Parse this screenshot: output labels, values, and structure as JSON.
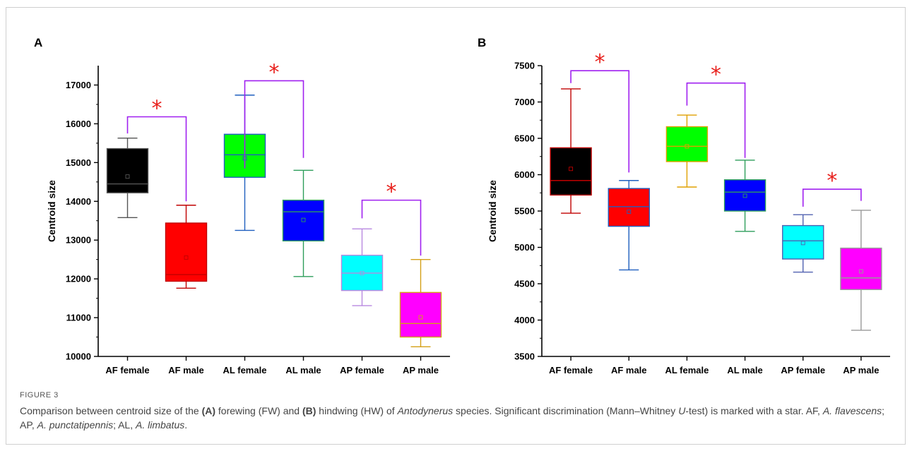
{
  "panels": [
    {
      "label": "A",
      "ylabel": "Centroid size",
      "ylim": [
        10000,
        17500
      ],
      "yticks": [
        10000,
        11000,
        12000,
        13000,
        14000,
        15000,
        16000,
        17000
      ]
    },
    {
      "label": "B",
      "ylabel": "Centroid size",
      "ylim": [
        3500,
        7500
      ],
      "yticks": [
        3500,
        4000,
        4500,
        5000,
        5500,
        6000,
        6500,
        7000,
        7500
      ]
    }
  ],
  "chart_data": [
    {
      "type": "box",
      "title": "",
      "xlabel": "",
      "ylabel": "Centroid size",
      "ylim": [
        10000,
        17500
      ],
      "grid": false,
      "categories": [
        "AF female",
        "AF male",
        "AL female",
        "AL male",
        "AP female",
        "AP male"
      ],
      "boxes": [
        {
          "category": "AF female",
          "min": 13580,
          "q1": 14220,
          "median": 14450,
          "mean": 14640,
          "q3": 15360,
          "max": 15630,
          "fill": "#000000",
          "line": "#555555"
        },
        {
          "category": "AF male",
          "min": 11760,
          "q1": 11940,
          "median": 12110,
          "mean": 12550,
          "q3": 13440,
          "max": 13900,
          "fill": "#ff0000",
          "line": "#c00000"
        },
        {
          "category": "AL female",
          "min": 13250,
          "q1": 14620,
          "median": 15200,
          "mean": 15110,
          "q3": 15730,
          "max": 16740,
          "fill": "#00ff00",
          "line": "#1f5fbf"
        },
        {
          "category": "AL male",
          "min": 12060,
          "q1": 12980,
          "median": 13730,
          "mean": 13520,
          "q3": 14030,
          "max": 14800,
          "fill": "#0000ff",
          "line": "#2e9e5b"
        },
        {
          "category": "AP female",
          "min": 11310,
          "q1": 11700,
          "median": 12150,
          "mean": 12150,
          "q3": 12610,
          "max": 13290,
          "fill": "#00ffff",
          "line": "#b888e0"
        },
        {
          "category": "AP male",
          "min": 10250,
          "q1": 10500,
          "median": 10850,
          "mean": 11010,
          "q3": 11650,
          "max": 12500,
          "fill": "#ff00ff",
          "line": "#d4a017"
        }
      ],
      "significance": [
        {
          "from": "AF female",
          "to": "AF male",
          "y_left": 15750,
          "y_top": 16180,
          "y_right": 14000,
          "marker": "*"
        },
        {
          "from": "AL female",
          "to": "AL male",
          "y_left": 14850,
          "y_top": 17110,
          "y_right": 15120,
          "marker": "*"
        },
        {
          "from": "AP female",
          "to": "AP male",
          "y_left": 13560,
          "y_top": 14030,
          "y_right": 12600,
          "marker": "*"
        }
      ]
    },
    {
      "type": "box",
      "title": "",
      "xlabel": "",
      "ylabel": "Centroid size",
      "ylim": [
        3500,
        7500
      ],
      "grid": false,
      "categories": [
        "AF female",
        "AF male",
        "AL female",
        "AL male",
        "AP female",
        "AP male"
      ],
      "boxes": [
        {
          "category": "AF female",
          "min": 5470,
          "q1": 5720,
          "median": 5920,
          "mean": 6080,
          "q3": 6370,
          "max": 7180,
          "fill": "#000000",
          "line": "#c00000"
        },
        {
          "category": "AF male",
          "min": 4690,
          "q1": 5290,
          "median": 5560,
          "mean": 5490,
          "q3": 5810,
          "max": 5920,
          "fill": "#ff0000",
          "line": "#1f5fbf"
        },
        {
          "category": "AL female",
          "min": 5830,
          "q1": 6180,
          "median": 6390,
          "mean": 6390,
          "q3": 6660,
          "max": 6820,
          "fill": "#00ff00",
          "line": "#e0a000"
        },
        {
          "category": "AL male",
          "min": 5220,
          "q1": 5500,
          "median": 5760,
          "mean": 5710,
          "q3": 5930,
          "max": 6200,
          "fill": "#0000ff",
          "line": "#2e9e5b"
        },
        {
          "category": "AP female",
          "min": 4660,
          "q1": 4840,
          "median": 5090,
          "mean": 5060,
          "q3": 5300,
          "max": 5450,
          "fill": "#00ffff",
          "line": "#5060b0"
        },
        {
          "category": "AP male",
          "min": 3860,
          "q1": 4420,
          "median": 4580,
          "mean": 4670,
          "q3": 4990,
          "max": 5510,
          "fill": "#ff00ff",
          "line": "#999999"
        }
      ],
      "significance": [
        {
          "from": "AF female",
          "to": "AF male",
          "y_left": 7260,
          "y_top": 7430,
          "y_right": 6030,
          "marker": "*"
        },
        {
          "from": "AL female",
          "to": "AL male",
          "y_left": 6950,
          "y_top": 7260,
          "y_right": 6230,
          "marker": "*"
        },
        {
          "from": "AP female",
          "to": "AP male",
          "y_left": 5560,
          "y_top": 5800,
          "y_right": 5640,
          "marker": "*"
        }
      ]
    }
  ],
  "figure": {
    "label": "FIGURE 3",
    "caption": {
      "p1": "Comparison between centroid size of the ",
      "a": "(A)",
      "p2": " forewing (FW) and ",
      "b": "(B)",
      "p3": " hindwing (HW) of ",
      "genus": "Antodynerus",
      "p4": " species. Significant discrimination (Mann–Whitney ",
      "u": "U",
      "p5": "-test) is marked with a star. AF, ",
      "af": "A. flavescens",
      "p6": "; AP, ",
      "ap": "A. punctatipennis",
      "p7": "; AL, ",
      "al": "A. limbatus",
      "p8": "."
    }
  },
  "colors": {
    "bracket": "#a020f0",
    "star": "#e8201c"
  }
}
